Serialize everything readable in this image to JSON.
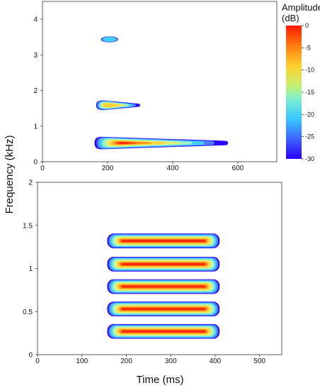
{
  "chart_data": [
    {
      "type": "heatmap",
      "title": "",
      "xlabel": "",
      "ylabel": "",
      "xlim": [
        0,
        720
      ],
      "ylim": [
        0,
        4.5
      ],
      "xticks": [
        "0",
        "200",
        "400",
        "600"
      ],
      "xtick_values": [
        0,
        200,
        400,
        600
      ],
      "yticks": [
        "0",
        "1",
        "2",
        "3",
        "4"
      ],
      "ytick_values": [
        0,
        1,
        2,
        3,
        4
      ],
      "blobs": [
        {
          "x_start": 160,
          "x_end": 570,
          "f_low": 0.35,
          "f_high": 0.7,
          "peak_x": 240,
          "peak_db": 0,
          "shape": "taper"
        },
        {
          "x_start": 165,
          "x_end": 300,
          "f_low": 1.45,
          "f_high": 1.72,
          "peak_x": 200,
          "peak_db": -10,
          "shape": "taper"
        },
        {
          "x_start": 180,
          "x_end": 232,
          "f_low": 3.35,
          "f_high": 3.52,
          "peak_x": 205,
          "peak_db": -22,
          "shape": "ellipse"
        }
      ]
    },
    {
      "type": "heatmap",
      "title": "",
      "xlabel": "Time (ms)",
      "ylabel": "",
      "xlim": [
        0,
        550
      ],
      "ylim": [
        0,
        2
      ],
      "xticks": [
        "0",
        "100",
        "200",
        "300",
        "400",
        "500"
      ],
      "xtick_values": [
        0,
        100,
        200,
        300,
        400,
        500
      ],
      "yticks": [
        "0",
        "0.5",
        "1",
        "1.5",
        "2"
      ],
      "ytick_values": [
        0,
        0.5,
        1,
        1.5,
        2
      ],
      "bands": [
        {
          "x_start": 157,
          "x_end": 410,
          "f_center": 0.27,
          "height": 0.17,
          "peak_db": 0
        },
        {
          "x_start": 157,
          "x_end": 410,
          "f_center": 0.53,
          "height": 0.17,
          "peak_db": 0
        },
        {
          "x_start": 157,
          "x_end": 410,
          "f_center": 0.79,
          "height": 0.17,
          "peak_db": 0
        },
        {
          "x_start": 157,
          "x_end": 410,
          "f_center": 1.05,
          "height": 0.17,
          "peak_db": 0
        },
        {
          "x_start": 157,
          "x_end": 410,
          "f_center": 1.32,
          "height": 0.17,
          "peak_db": 0
        }
      ]
    }
  ],
  "shared": {
    "ylabel": "Frequency (kHz)",
    "colorbar": {
      "title_line1": "Amplitude",
      "title_line2": "(dB)",
      "min": -30,
      "max": 0,
      "ticks": [
        "0",
        "-5",
        "-10",
        "-15",
        "-20",
        "-25",
        "-30"
      ],
      "tick_values": [
        0,
        -5,
        -10,
        -15,
        -20,
        -25,
        -30
      ],
      "colormap": "rainbow (blue = -30 dB, red = 0 dB)"
    }
  }
}
